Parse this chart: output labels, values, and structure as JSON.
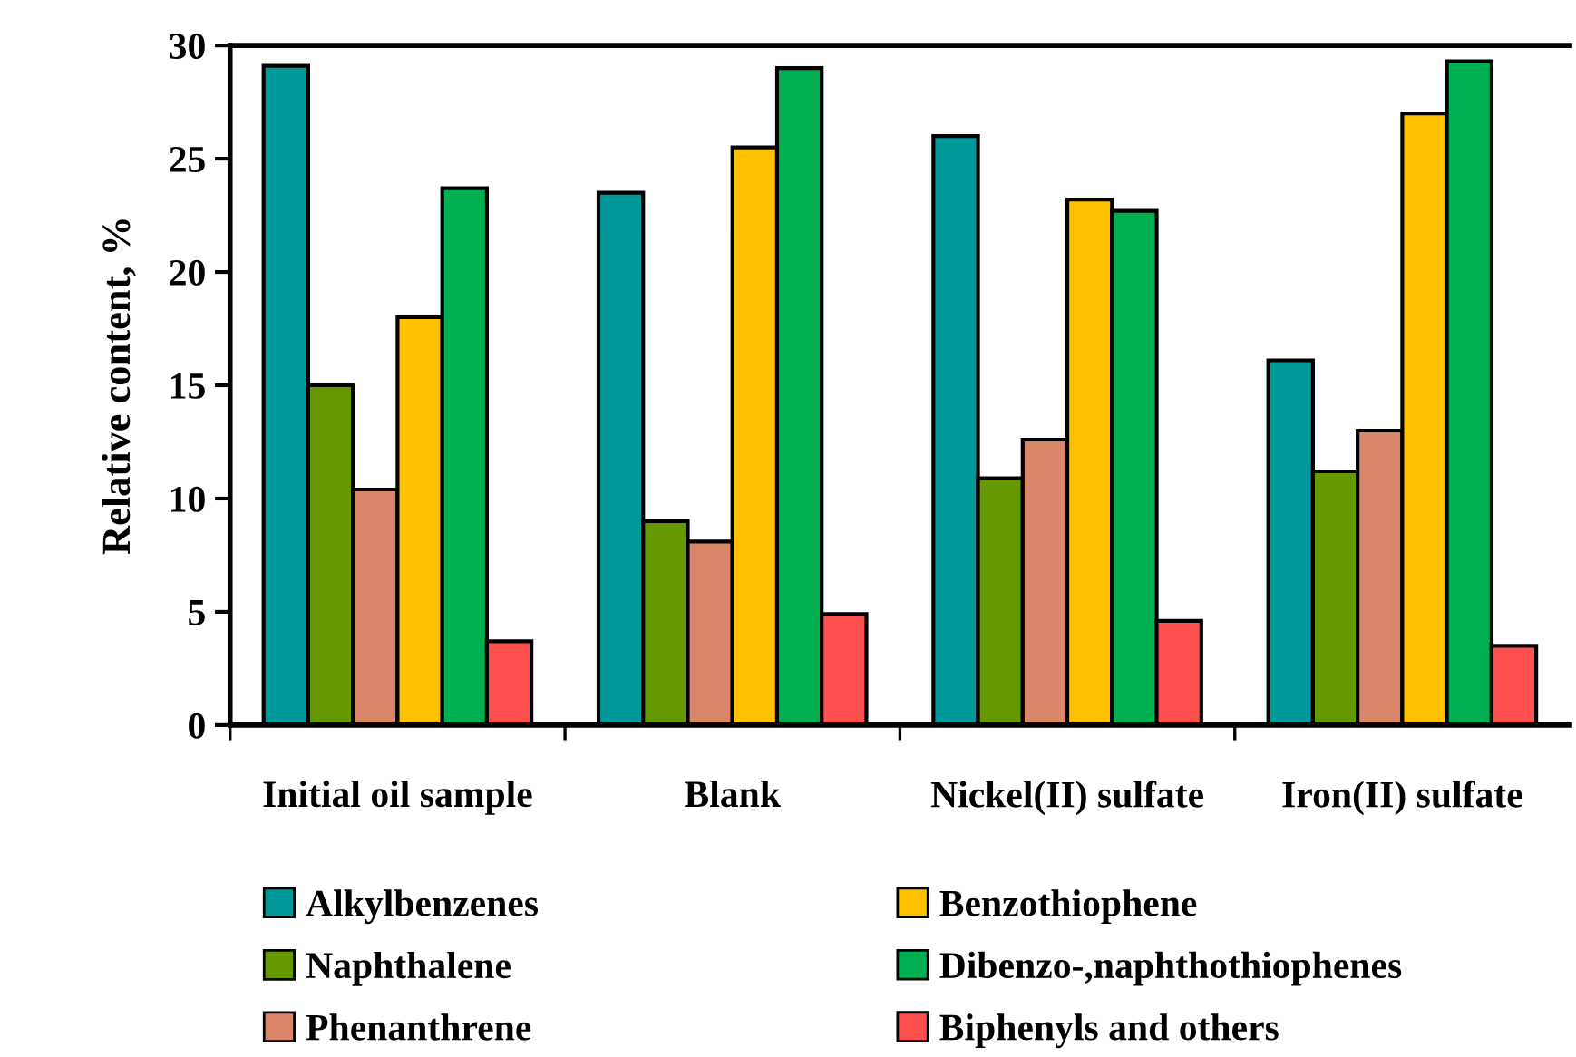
{
  "chart_data": {
    "type": "bar",
    "ylabel": "Relative content, %",
    "categories": [
      "Initial oil sample",
      "Blank",
      "Nickel(II) sulfate",
      "Iron(II) sulfate"
    ],
    "series": [
      {
        "name": "Alkylbenzenes",
        "color": "#009999",
        "values": [
          29.1,
          23.5,
          26.0,
          16.1
        ]
      },
      {
        "name": "Naphthalene",
        "color": "#669900",
        "values": [
          15.0,
          9.0,
          10.9,
          11.2
        ]
      },
      {
        "name": "Phenanthrene",
        "color": "#d9866b",
        "values": [
          10.4,
          8.1,
          12.6,
          13.0
        ]
      },
      {
        "name": "Benzothiophene",
        "color": "#ffc000",
        "values": [
          18.0,
          25.5,
          23.2,
          27.0
        ]
      },
      {
        "name": "Dibenzo-,naphthothiophenes",
        "color": "#00b050",
        "values": [
          23.7,
          29.0,
          22.7,
          29.3
        ]
      },
      {
        "name": "Biphenyls and others",
        "color": "#ff5050",
        "values": [
          3.7,
          4.9,
          4.6,
          3.5
        ]
      }
    ],
    "ylim": [
      0,
      30
    ],
    "yticks": [
      0,
      5,
      10,
      15,
      20,
      25,
      30
    ],
    "grid": false,
    "legend": "bottom"
  }
}
